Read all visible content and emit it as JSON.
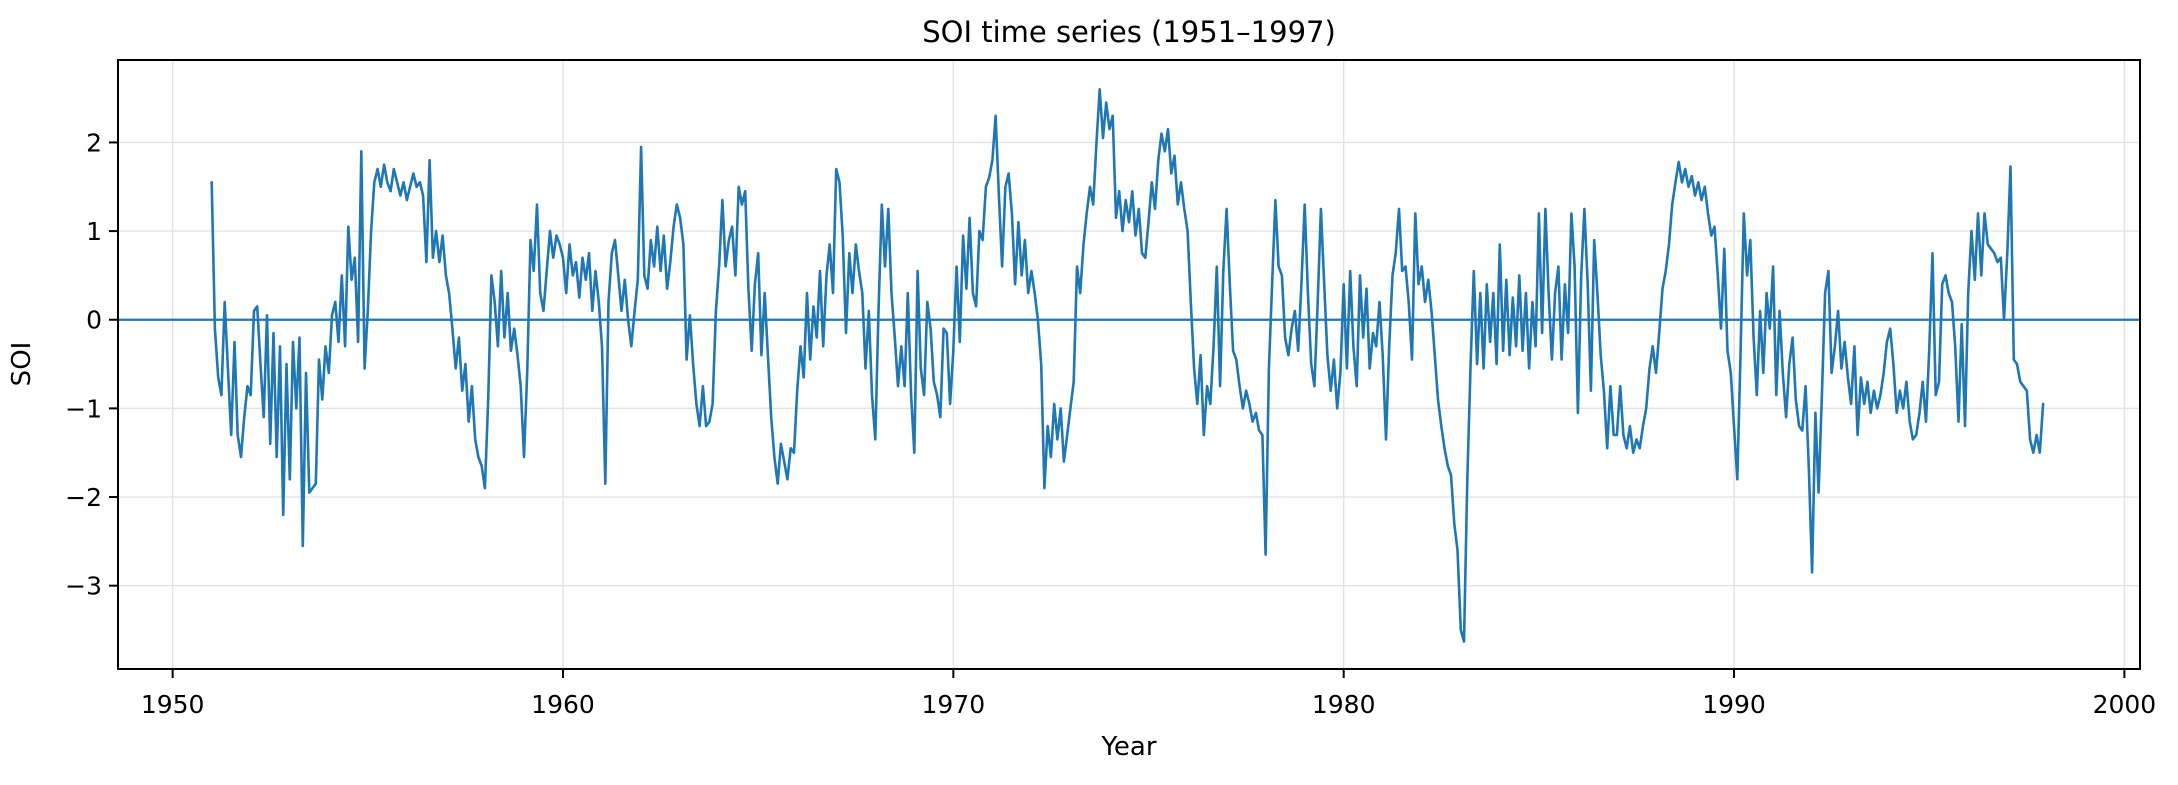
{
  "figure": {
    "title": "SOI time series (1951–1997)"
  },
  "chart_data": {
    "type": "line",
    "title": "SOI time series (1951–1997)",
    "xlabel": "Year",
    "ylabel": "SOI",
    "xlim": [
      1948.6,
      2000.4
    ],
    "ylim": [
      -3.94,
      2.93
    ],
    "x_ticks": [
      1950,
      1960,
      1970,
      1980,
      1990,
      2000
    ],
    "x_tick_labels": [
      "1950",
      "1960",
      "1970",
      "1980",
      "1990",
      "2000"
    ],
    "y_ticks": [
      -3,
      -2,
      -1,
      0,
      1,
      2
    ],
    "y_tick_labels": [
      "−3",
      "−2",
      "−1",
      "0",
      "1",
      "2"
    ],
    "grid": true,
    "legend": "none",
    "zero_line": 0,
    "line_color": "#1f77b4",
    "zero_line_color": "#1f77b4",
    "grid_color": "#e3e3e3",
    "spine_color": "#000000",
    "background_color": "#ffffff",
    "x_start_year": 1951,
    "x_end_year": 1997,
    "points_per_year": 12,
    "series": [
      {
        "name": "SOI",
        "values_by_year": [
          {
            "year": 1951,
            "values": [
              1.55,
              -0.1,
              -0.65,
              -0.85,
              0.2,
              -0.55,
              -1.3,
              -0.25,
              -1.3,
              -1.55,
              -1.1,
              -0.75
            ]
          },
          {
            "year": 1952,
            "values": [
              -0.85,
              0.1,
              0.15,
              -0.5,
              -1.1,
              0.05,
              -1.4,
              -0.15,
              -1.55,
              -0.3,
              -2.2,
              -0.5
            ]
          },
          {
            "year": 1953,
            "values": [
              -1.8,
              -0.25,
              -1.0,
              -0.2,
              -2.55,
              -0.6,
              -1.95,
              -1.9,
              -1.85,
              -0.45,
              -0.9,
              -0.3
            ]
          },
          {
            "year": 1954,
            "values": [
              -0.6,
              0.05,
              0.2,
              -0.25,
              0.5,
              -0.3,
              1.05,
              0.45,
              0.7,
              -0.25,
              1.9,
              -0.55
            ]
          },
          {
            "year": 1955,
            "values": [
              0.1,
              1.0,
              1.55,
              1.7,
              1.5,
              1.75,
              1.55,
              1.45,
              1.7,
              1.55,
              1.4,
              1.55
            ]
          },
          {
            "year": 1956,
            "values": [
              1.35,
              1.5,
              1.65,
              1.5,
              1.55,
              1.4,
              0.65,
              1.8,
              0.7,
              1.0,
              0.65,
              0.95
            ]
          },
          {
            "year": 1957,
            "values": [
              0.5,
              0.3,
              -0.1,
              -0.55,
              -0.2,
              -0.8,
              -0.5,
              -1.15,
              -0.75,
              -1.35,
              -1.55,
              -1.65
            ]
          },
          {
            "year": 1958,
            "values": [
              -1.9,
              -0.9,
              0.5,
              0.2,
              -0.3,
              0.55,
              -0.2,
              0.3,
              -0.35,
              -0.1,
              -0.4,
              -0.75
            ]
          },
          {
            "year": 1959,
            "values": [
              -1.55,
              -0.6,
              0.9,
              0.55,
              1.3,
              0.3,
              0.1,
              0.55,
              1.0,
              0.7,
              0.95,
              0.85
            ]
          },
          {
            "year": 1960,
            "values": [
              0.7,
              0.3,
              0.85,
              0.5,
              0.65,
              0.25,
              0.7,
              0.45,
              0.75,
              0.1,
              0.55,
              0.2
            ]
          },
          {
            "year": 1961,
            "values": [
              -0.3,
              -1.85,
              0.2,
              0.75,
              0.9,
              0.5,
              0.1,
              0.45,
              0.0,
              -0.3,
              0.1,
              0.45
            ]
          },
          {
            "year": 1962,
            "values": [
              1.95,
              0.5,
              0.35,
              0.9,
              0.6,
              1.05,
              0.55,
              0.95,
              0.35,
              0.65,
              1.05,
              1.3
            ]
          },
          {
            "year": 1963,
            "values": [
              1.15,
              0.85,
              -0.45,
              0.05,
              -0.5,
              -0.95,
              -1.2,
              -0.75,
              -1.2,
              -1.15,
              -0.95,
              0.1
            ]
          },
          {
            "year": 1964,
            "values": [
              0.6,
              1.35,
              0.6,
              0.9,
              1.05,
              0.5,
              1.5,
              1.3,
              1.45,
              0.35,
              -0.35,
              0.4
            ]
          },
          {
            "year": 1965,
            "values": [
              0.75,
              -0.4,
              0.3,
              -0.4,
              -1.1,
              -1.55,
              -1.85,
              -1.4,
              -1.6,
              -1.8,
              -1.45,
              -1.5
            ]
          },
          {
            "year": 1966,
            "values": [
              -0.8,
              -0.3,
              -0.65,
              0.3,
              -0.45,
              0.15,
              -0.2,
              0.55,
              -0.3,
              0.5,
              0.85,
              0.3
            ]
          },
          {
            "year": 1967,
            "values": [
              1.7,
              1.55,
              0.95,
              -0.15,
              0.75,
              0.3,
              0.85,
              0.55,
              0.3,
              -0.55,
              0.1,
              -0.85
            ]
          },
          {
            "year": 1968,
            "values": [
              -1.35,
              0.1,
              1.3,
              0.6,
              1.25,
              0.3,
              -0.2,
              -0.75,
              -0.3,
              -0.75,
              0.3,
              -0.85
            ]
          },
          {
            "year": 1969,
            "values": [
              -1.5,
              0.55,
              -0.55,
              -0.85,
              0.2,
              -0.1,
              -0.7,
              -0.85,
              -1.1,
              -0.1,
              -0.15,
              -0.95
            ]
          },
          {
            "year": 1970,
            "values": [
              -0.35,
              0.6,
              -0.25,
              0.95,
              0.35,
              1.15,
              0.3,
              0.15,
              1.0,
              0.9,
              1.5,
              1.6
            ]
          },
          {
            "year": 1971,
            "values": [
              1.8,
              2.3,
              1.4,
              0.6,
              1.5,
              1.65,
              1.2,
              0.4,
              1.1,
              0.5,
              0.9,
              0.3
            ]
          },
          {
            "year": 1972,
            "values": [
              0.55,
              0.3,
              0.0,
              -0.5,
              -1.9,
              -1.2,
              -1.55,
              -0.95,
              -1.35,
              -1.0,
              -1.6,
              -1.3
            ]
          },
          {
            "year": 1973,
            "values": [
              -1.0,
              -0.7,
              0.6,
              0.3,
              0.85,
              1.2,
              1.5,
              1.3,
              2.0,
              2.6,
              2.05,
              2.45
            ]
          },
          {
            "year": 1974,
            "values": [
              2.15,
              2.3,
              1.15,
              1.45,
              1.0,
              1.35,
              1.1,
              1.45,
              0.95,
              1.25,
              0.75,
              0.7
            ]
          },
          {
            "year": 1975,
            "values": [
              1.1,
              1.55,
              1.25,
              1.8,
              2.1,
              1.9,
              2.15,
              1.65,
              1.85,
              1.3,
              1.55,
              1.25
            ]
          },
          {
            "year": 1976,
            "values": [
              1.0,
              0.2,
              -0.55,
              -0.95,
              -0.4,
              -1.3,
              -0.75,
              -0.95,
              -0.3,
              0.6,
              -0.75,
              0.55
            ]
          },
          {
            "year": 1977,
            "values": [
              1.25,
              0.4,
              -0.35,
              -0.45,
              -0.75,
              -1.0,
              -0.8,
              -0.95,
              -1.15,
              -1.05,
              -1.25,
              -1.3
            ]
          },
          {
            "year": 1978,
            "values": [
              -2.65,
              -0.55,
              0.4,
              1.35,
              0.6,
              0.5,
              -0.2,
              -0.4,
              -0.1,
              0.1,
              -0.35,
              0.4
            ]
          },
          {
            "year": 1979,
            "values": [
              1.3,
              0.3,
              -0.5,
              -0.75,
              0.2,
              1.25,
              0.4,
              -0.4,
              -0.8,
              -0.45,
              -1.0,
              -0.6
            ]
          },
          {
            "year": 1980,
            "values": [
              0.4,
              -0.55,
              0.55,
              -0.3,
              -0.75,
              0.5,
              -0.2,
              0.35,
              -0.55,
              -0.15,
              -0.3,
              0.2
            ]
          },
          {
            "year": 1981,
            "values": [
              -0.4,
              -1.35,
              -0.3,
              0.5,
              0.75,
              1.25,
              0.55,
              0.6,
              0.2,
              -0.45,
              1.2,
              0.4
            ]
          },
          {
            "year": 1982,
            "values": [
              0.6,
              0.2,
              0.45,
              0.1,
              -0.4,
              -0.9,
              -1.2,
              -1.45,
              -1.65,
              -1.75,
              -2.3,
              -2.6
            ]
          },
          {
            "year": 1983,
            "values": [
              -3.5,
              -3.63,
              -1.8,
              -0.5,
              0.55,
              -0.5,
              0.3,
              -0.55,
              0.4,
              -0.25,
              0.3,
              -0.5
            ]
          },
          {
            "year": 1984,
            "values": [
              0.85,
              -0.35,
              0.45,
              -0.4,
              0.25,
              -0.3,
              0.5,
              -0.35,
              0.3,
              -0.55,
              0.2,
              -0.3
            ]
          },
          {
            "year": 1985,
            "values": [
              1.2,
              -0.15,
              1.25,
              0.3,
              -0.45,
              0.3,
              0.6,
              -0.45,
              0.4,
              -0.15,
              1.2,
              0.6
            ]
          },
          {
            "year": 1986,
            "values": [
              -1.05,
              0.5,
              1.25,
              0.4,
              -0.8,
              0.9,
              0.3,
              -0.4,
              -0.8,
              -1.45,
              -0.75,
              -1.3
            ]
          },
          {
            "year": 1987,
            "values": [
              -1.3,
              -0.75,
              -1.3,
              -1.45,
              -1.2,
              -1.5,
              -1.35,
              -1.45,
              -1.2,
              -1.0,
              -0.55,
              -0.3
            ]
          },
          {
            "year": 1988,
            "values": [
              -0.6,
              -0.15,
              0.35,
              0.55,
              0.85,
              1.3,
              1.55,
              1.78,
              1.55,
              1.7,
              1.5,
              1.62
            ]
          },
          {
            "year": 1989,
            "values": [
              1.4,
              1.55,
              1.35,
              1.5,
              1.2,
              0.95,
              1.05,
              0.5,
              -0.1,
              0.8,
              -0.35,
              -0.6
            ]
          },
          {
            "year": 1990,
            "values": [
              -1.2,
              -1.8,
              -0.4,
              1.2,
              0.5,
              0.9,
              -0.2,
              -0.85,
              0.1,
              -0.6,
              0.3,
              -0.1
            ]
          },
          {
            "year": 1991,
            "values": [
              0.6,
              -0.85,
              0.1,
              -0.6,
              -1.1,
              -0.5,
              -0.2,
              -0.9,
              -1.2,
              -1.25,
              -0.75,
              -1.7
            ]
          },
          {
            "year": 1992,
            "values": [
              -2.85,
              -1.05,
              -1.95,
              -0.85,
              0.3,
              0.55,
              -0.6,
              -0.3,
              0.1,
              -0.55,
              -0.25,
              -0.65
            ]
          },
          {
            "year": 1993,
            "values": [
              -0.95,
              -0.3,
              -1.3,
              -0.65,
              -0.95,
              -0.7,
              -1.05,
              -0.8,
              -1.0,
              -0.85,
              -0.6,
              -0.25
            ]
          },
          {
            "year": 1994,
            "values": [
              -0.1,
              -0.5,
              -1.05,
              -0.8,
              -1.0,
              -0.7,
              -1.15,
              -1.35,
              -1.3,
              -1.05,
              -0.7,
              -1.15
            ]
          },
          {
            "year": 1995,
            "values": [
              -0.35,
              0.75,
              -0.85,
              -0.7,
              0.4,
              0.5,
              0.3,
              0.2,
              -0.3,
              -1.15,
              -0.05,
              -1.2
            ]
          },
          {
            "year": 1996,
            "values": [
              0.3,
              1.0,
              0.45,
              1.2,
              0.5,
              1.2,
              0.85,
              0.8,
              0.75,
              0.65,
              0.7,
              0.0
            ]
          },
          {
            "year": 1997,
            "values": [
              0.75,
              1.73,
              -0.45,
              -0.5,
              -0.7,
              -0.75,
              -0.8,
              -1.35,
              -1.5,
              -1.3,
              -1.5,
              -0.95
            ]
          }
        ]
      }
    ]
  }
}
